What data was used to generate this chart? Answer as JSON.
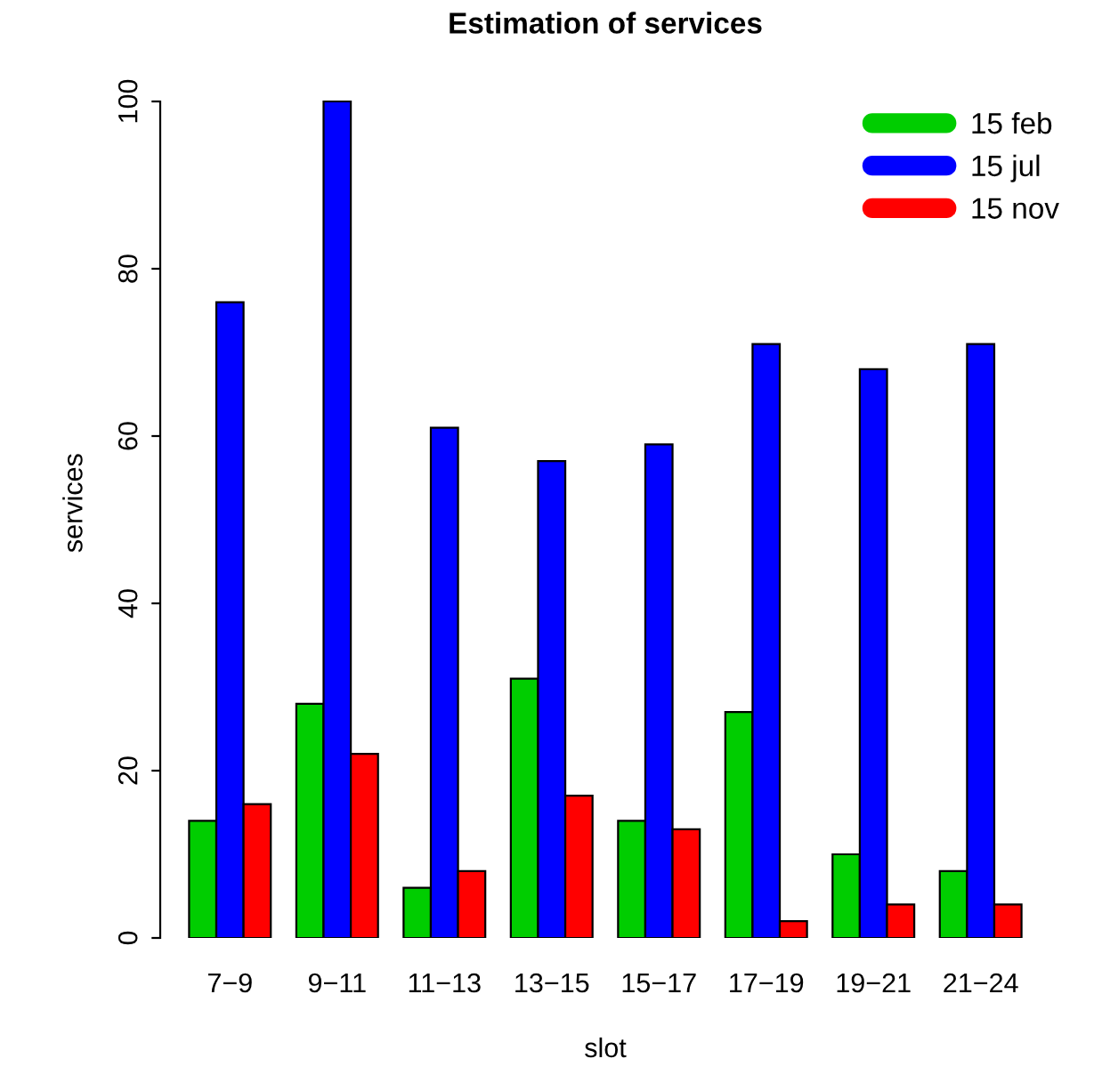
{
  "chart_data": {
    "type": "bar",
    "title": "Estimation of services",
    "xlabel": "slot",
    "ylabel": "services",
    "categories": [
      "7−9",
      "9−11",
      "11−13",
      "13−15",
      "15−17",
      "17−19",
      "19−21",
      "21−24"
    ],
    "series": [
      {
        "name": "15 feb",
        "color": "#00cd00",
        "values": [
          14,
          28,
          6,
          31,
          14,
          27,
          10,
          8
        ]
      },
      {
        "name": "15 jul",
        "color": "#0000ff",
        "values": [
          76,
          100,
          61,
          57,
          59,
          71,
          68,
          71
        ]
      },
      {
        "name": "15 nov",
        "color": "#ff0000",
        "values": [
          16,
          22,
          8,
          17,
          13,
          2,
          4,
          4
        ]
      }
    ],
    "ylim": [
      0,
      100
    ],
    "yticks": [
      0,
      20,
      40,
      60,
      80,
      100
    ],
    "grid": false,
    "legend": "top right"
  }
}
